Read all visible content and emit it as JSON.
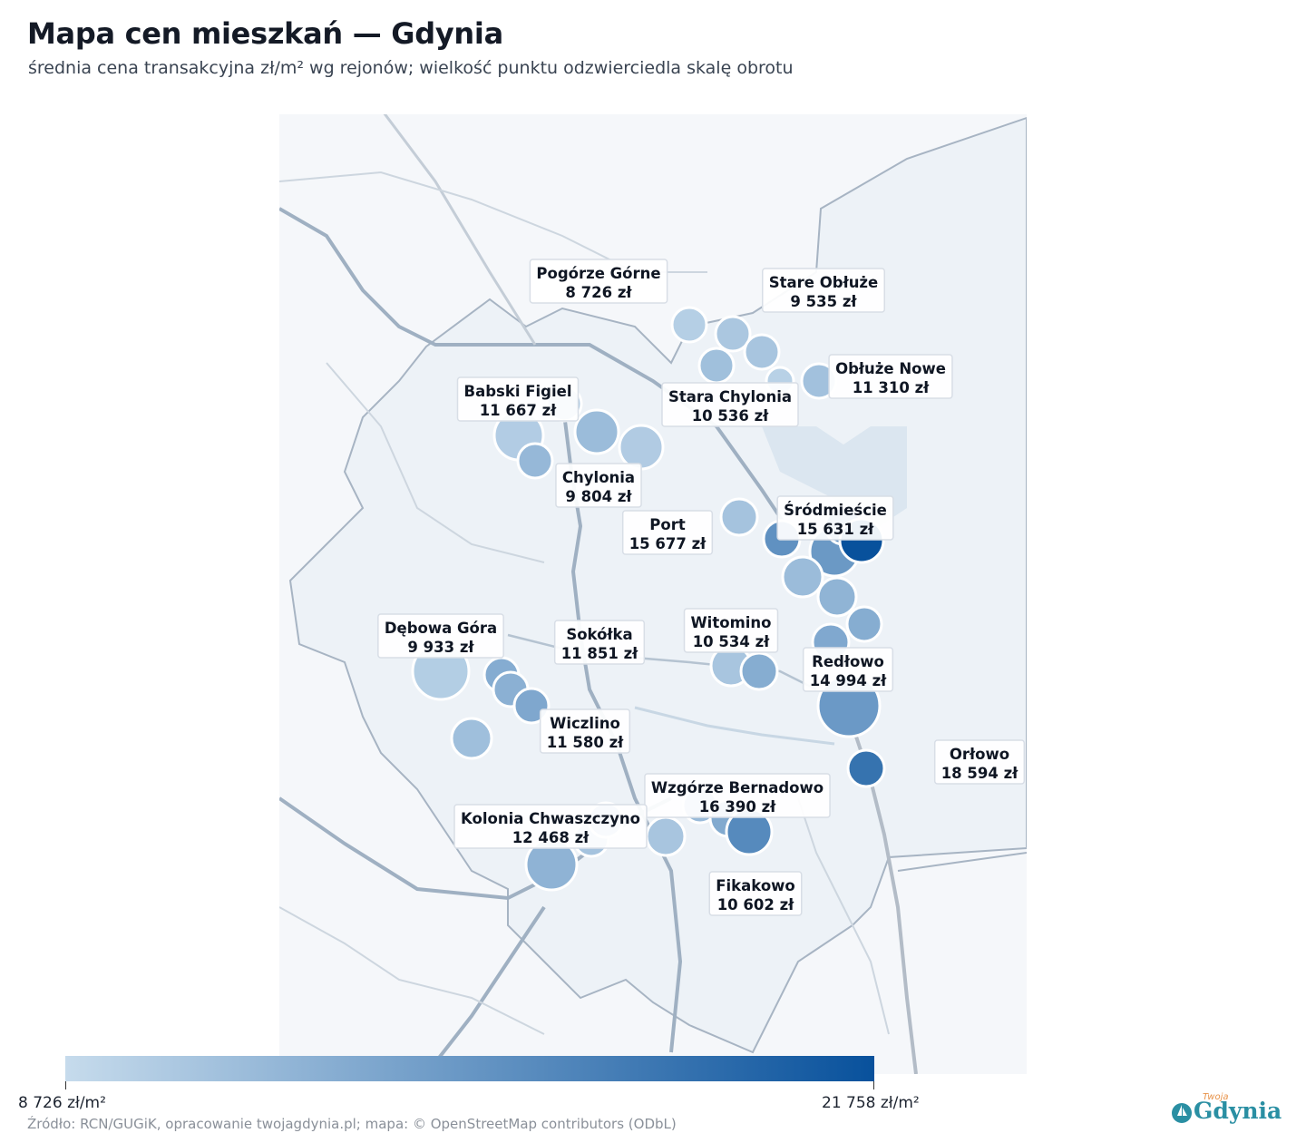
{
  "header": {
    "title": "Mapa cen mieszkań — Gdynia",
    "subtitle": "średnia cena transakcyjna zł/m² wg rejonów; wielkość punktu odzwierciedla skalę obrotu"
  },
  "legend": {
    "min_label": "8 726 zł/m²",
    "max_label": "21 758 zł/m²",
    "min_value": 8726,
    "max_value": 21758,
    "color_low": "#c6dbec",
    "color_high": "#08519c"
  },
  "source": "Źródło: RCN/GUGiK, opracowanie twojagdynia.pl; mapa: © OpenStreetMap contributors (ODbL)",
  "logo": {
    "word": "Gdynia",
    "small": "Twoja"
  },
  "districts": [
    {
      "name": "Pogórze Górne",
      "price": "8 726 zł"
    },
    {
      "name": "Stare Obłuże",
      "price": "9 535 zł"
    },
    {
      "name": "Obłuże Nowe",
      "price": "11 310 zł"
    },
    {
      "name": "Babski Figiel",
      "price": "11 667 zł"
    },
    {
      "name": "Stara Chylonia",
      "price": "10 536 zł"
    },
    {
      "name": "Chylonia",
      "price": "9 804 zł"
    },
    {
      "name": "Port",
      "price": "15 677 zł"
    },
    {
      "name": "Śródmieście",
      "price": "15 631 zł"
    },
    {
      "name": "Dębowa Góra",
      "price": "9 933 zł"
    },
    {
      "name": "Sokółka",
      "price": "11 851 zł"
    },
    {
      "name": "Witomino",
      "price": "10 534 zł"
    },
    {
      "name": "Redłowo",
      "price": "14 994 zł"
    },
    {
      "name": "Wiczlino",
      "price": "11 580 zł"
    },
    {
      "name": "Orłowo",
      "price": "18 594 zł"
    },
    {
      "name": "Wzgórze Bernadowo",
      "price": "16 390 zł"
    },
    {
      "name": "Kolonia Chwaszczyno",
      "price": "12 468 zł"
    },
    {
      "name": "Fikakowo",
      "price": "10 602 zł"
    }
  ],
  "points": [
    {
      "price": 9900
    },
    {
      "price": 10600
    },
    {
      "price": 11300
    },
    {
      "price": 10800
    },
    {
      "price": 9700
    },
    {
      "price": 11200
    },
    {
      "price": 10700
    },
    {
      "price": 11700
    },
    {
      "price": 10100
    },
    {
      "price": 10200
    },
    {
      "price": 12000
    },
    {
      "price": 11000
    },
    {
      "price": 15700
    },
    {
      "price": 15000
    },
    {
      "price": 16300
    },
    {
      "price": 21758
    },
    {
      "price": 11700
    },
    {
      "price": 12400
    },
    {
      "price": 13100
    },
    {
      "price": 13500
    },
    {
      "price": 10800
    },
    {
      "price": 13100
    },
    {
      "price": 14994
    },
    {
      "price": 18594
    },
    {
      "price": 10000
    },
    {
      "price": 13200
    },
    {
      "price": 12800
    },
    {
      "price": 13600
    },
    {
      "price": 11400
    },
    {
      "price": 12468
    },
    {
      "price": 11000
    },
    {
      "price": 11900
    },
    {
      "price": 10800
    },
    {
      "price": 11800
    },
    {
      "price": 13400
    },
    {
      "price": 16390
    }
  ]
}
